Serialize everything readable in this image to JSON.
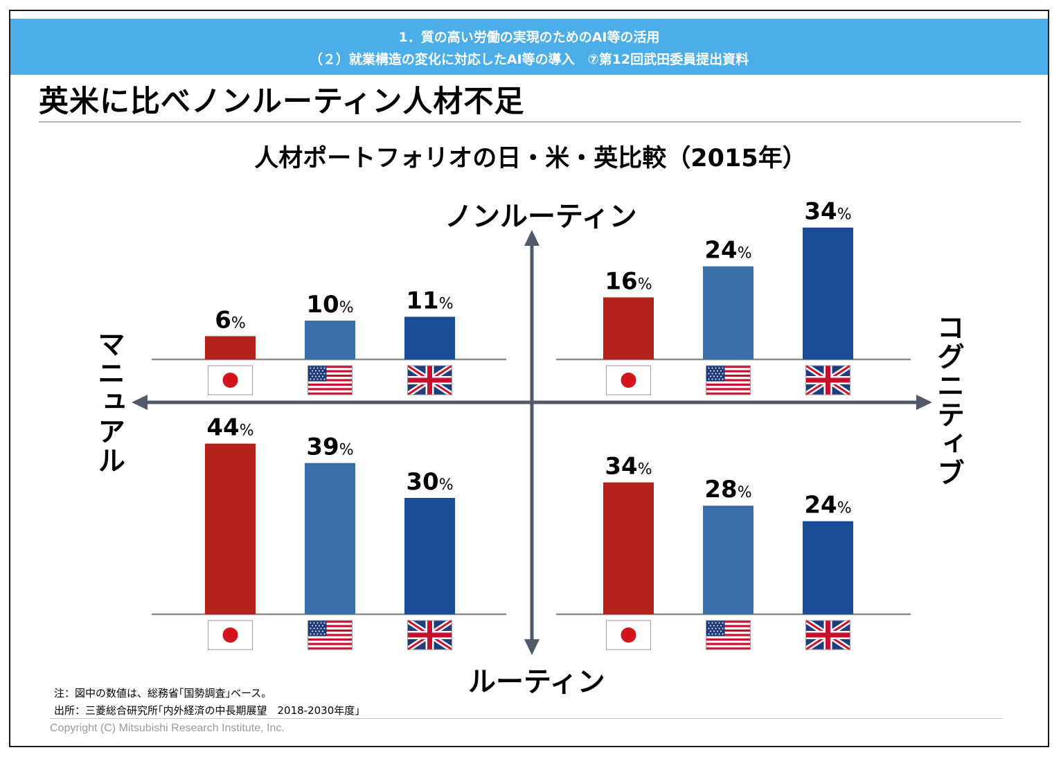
{
  "header": {
    "line1": "1．質の高い労働の実現のためのAI等の活用",
    "line2": "（２）就業構造の変化に対応したAI等の導入　⑦第12回武田委員提出資料"
  },
  "page_title": "英米に比べノンルーティン人材不足",
  "colors": {
    "japan": "#b3231b",
    "usa": "#3a6ea8",
    "uk": "#1a4b96",
    "banner": "#4baee8",
    "axis": "#505a6b"
  },
  "chart_data": {
    "type": "bar",
    "title": "人材ポートフォリオの日・米・英比較（2015年）",
    "axes": {
      "top": "ノンルーティン",
      "bottom": "ルーティン",
      "left": "マニュアル",
      "right": "コグニティブ"
    },
    "unit": "%",
    "categories": [
      "日本",
      "米国",
      "英国"
    ],
    "category_icons": [
      "japan-flag-icon",
      "usa-flag-icon",
      "uk-flag-icon"
    ],
    "quadrants": [
      {
        "id": "nonroutine-manual",
        "position": "top-left",
        "values": [
          6,
          10,
          11
        ]
      },
      {
        "id": "nonroutine-cognitive",
        "position": "top-right",
        "values": [
          16,
          24,
          34
        ]
      },
      {
        "id": "routine-manual",
        "position": "bottom-left",
        "values": [
          44,
          39,
          30
        ]
      },
      {
        "id": "routine-cognitive",
        "position": "bottom-right",
        "values": [
          34,
          28,
          24
        ]
      }
    ]
  },
  "notes": {
    "note": "注：図中の数値は、総務省｢国勢調査｣ベース。",
    "source": "出所：三菱総合研究所｢内外経済の中長期展望　2018-2030年度｣"
  },
  "copyright": "Copyright (C) Mitsubishi Research Institute, Inc."
}
